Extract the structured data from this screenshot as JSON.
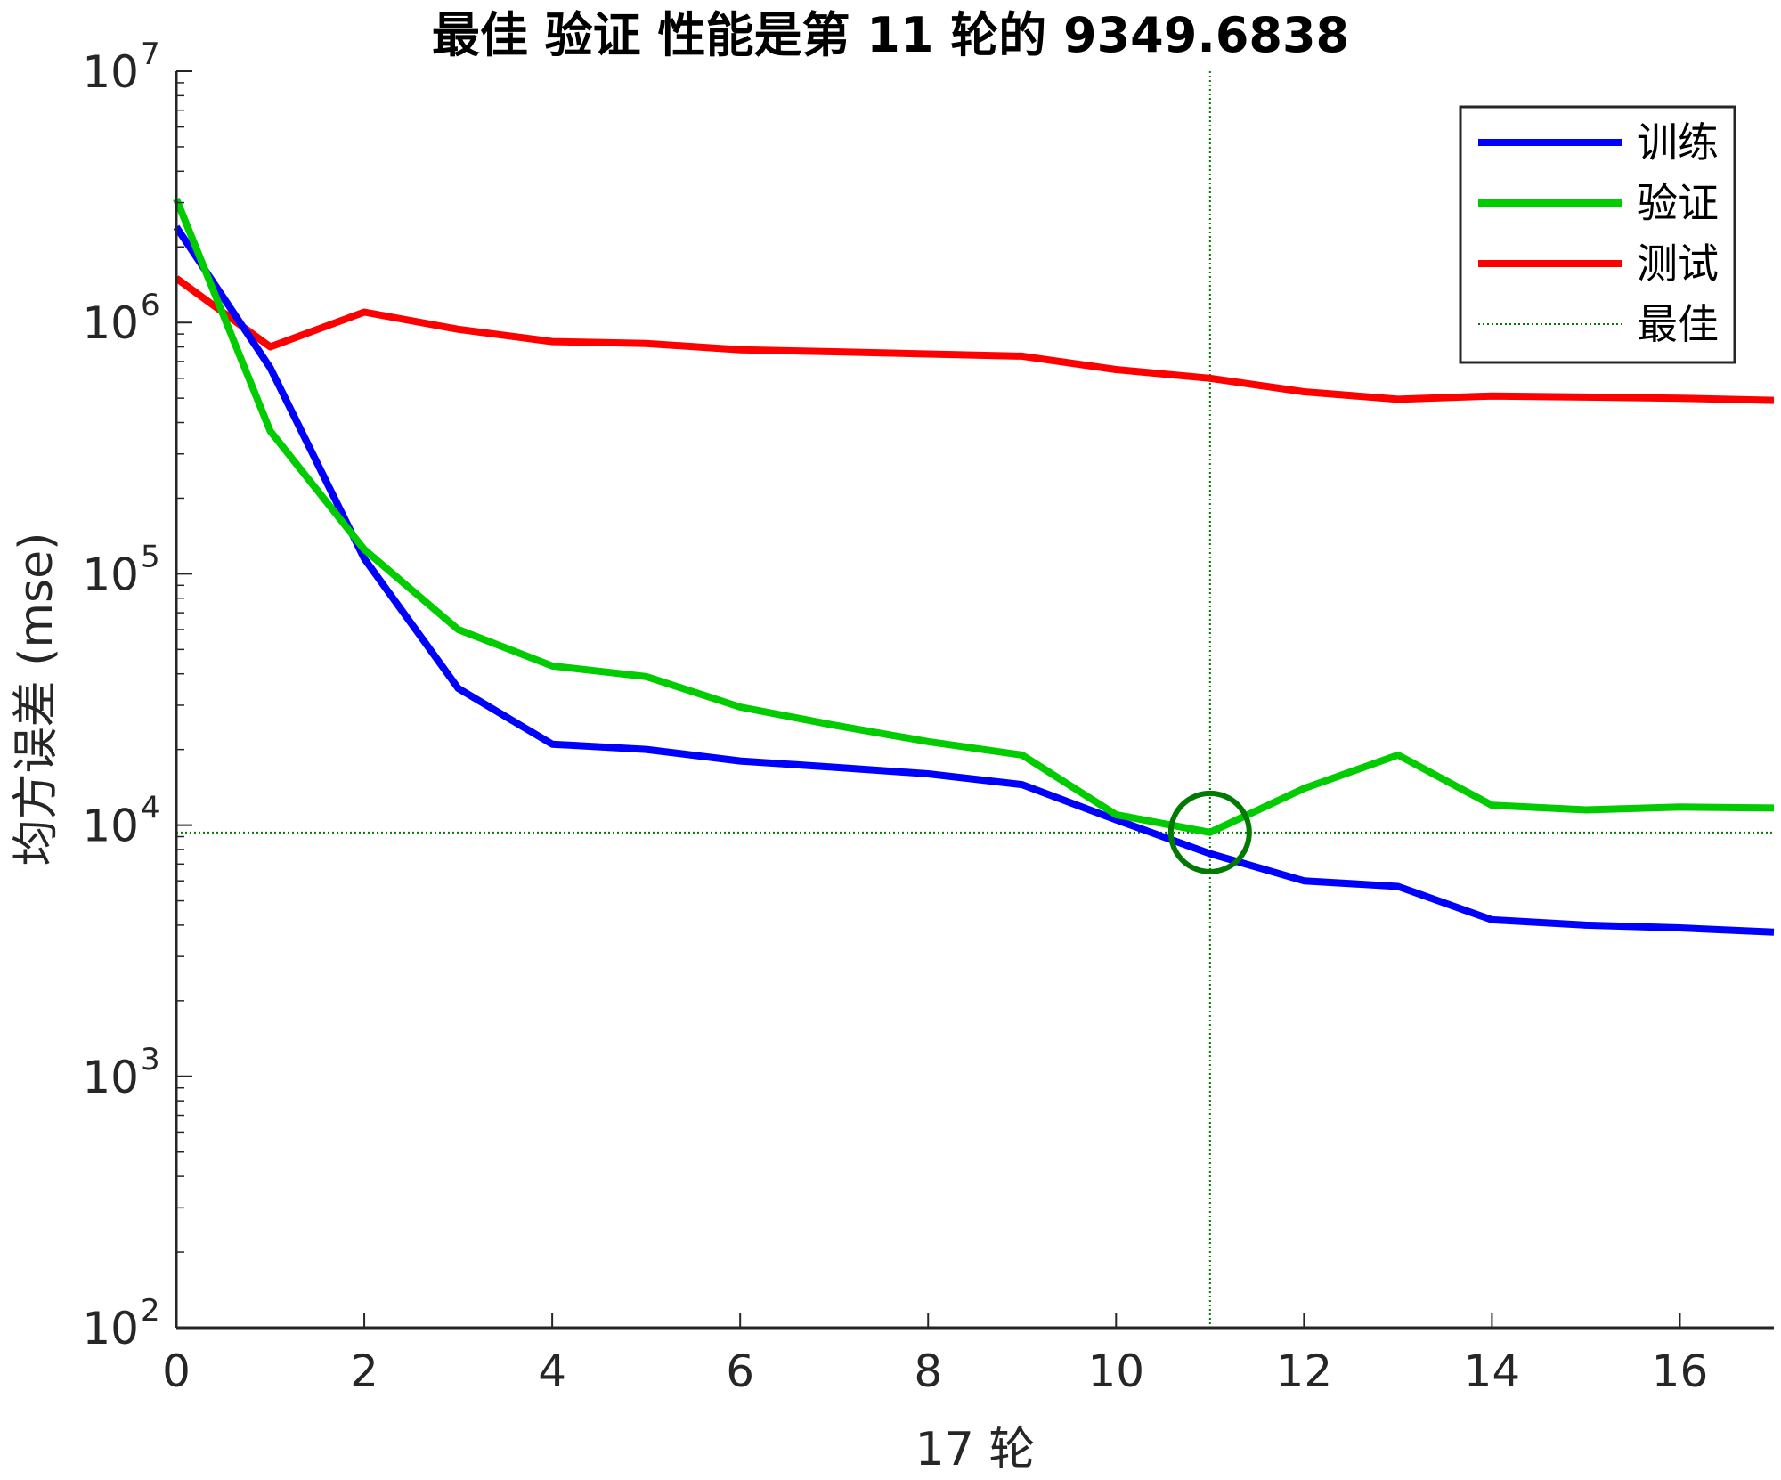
{
  "chart_data": {
    "type": "line",
    "title": "最佳 验证 性能是第 11 轮的 9349.6838",
    "xlabel": "17 轮",
    "ylabel": "均方误差 (mse)",
    "yscale": "log",
    "xlim": [
      0,
      17
    ],
    "ylim": [
      100,
      10000000
    ],
    "xticks": [
      0,
      2,
      4,
      6,
      8,
      10,
      12,
      14,
      16
    ],
    "xtick_labels": [
      "0",
      "2",
      "4",
      "6",
      "8",
      "10",
      "12",
      "14",
      "16"
    ],
    "yticks": [
      100,
      1000,
      10000,
      100000,
      1000000,
      10000000
    ],
    "ytick_labels": [
      {
        "base": "10",
        "exp": "2"
      },
      {
        "base": "10",
        "exp": "3"
      },
      {
        "base": "10",
        "exp": "4"
      },
      {
        "base": "10",
        "exp": "5"
      },
      {
        "base": "10",
        "exp": "6"
      },
      {
        "base": "10",
        "exp": "7"
      }
    ],
    "x": [
      0,
      1,
      2,
      3,
      4,
      5,
      6,
      7,
      8,
      9,
      10,
      11,
      12,
      13,
      14,
      15,
      16,
      17
    ],
    "series": [
      {
        "name": "训练",
        "color": "#0000ff",
        "values": [
          2400000,
          660000,
          115000,
          35000,
          21000,
          20000,
          18000,
          17000,
          16000,
          14500,
          10500,
          7700,
          6000,
          5700,
          4200,
          4000,
          3900,
          3750
        ]
      },
      {
        "name": "验证",
        "color": "#00cc00",
        "values": [
          3100000,
          370000,
          125000,
          60000,
          43000,
          39000,
          29500,
          25000,
          21500,
          19000,
          11000,
          9349.6838,
          14000,
          19000,
          12000,
          11500,
          11800,
          11700
        ]
      },
      {
        "name": "测试",
        "color": "#ff0000",
        "values": [
          1500000,
          800000,
          1100000,
          940000,
          840000,
          825000,
          780000,
          765000,
          750000,
          735000,
          650000,
          600000,
          530000,
          495000,
          510000,
          505000,
          500000,
          490000
        ]
      }
    ],
    "best": {
      "name": "最佳",
      "epoch": 11,
      "value": 9349.6838,
      "color": "#007a00"
    },
    "legend": {
      "position": "top-right"
    },
    "grid": false
  }
}
